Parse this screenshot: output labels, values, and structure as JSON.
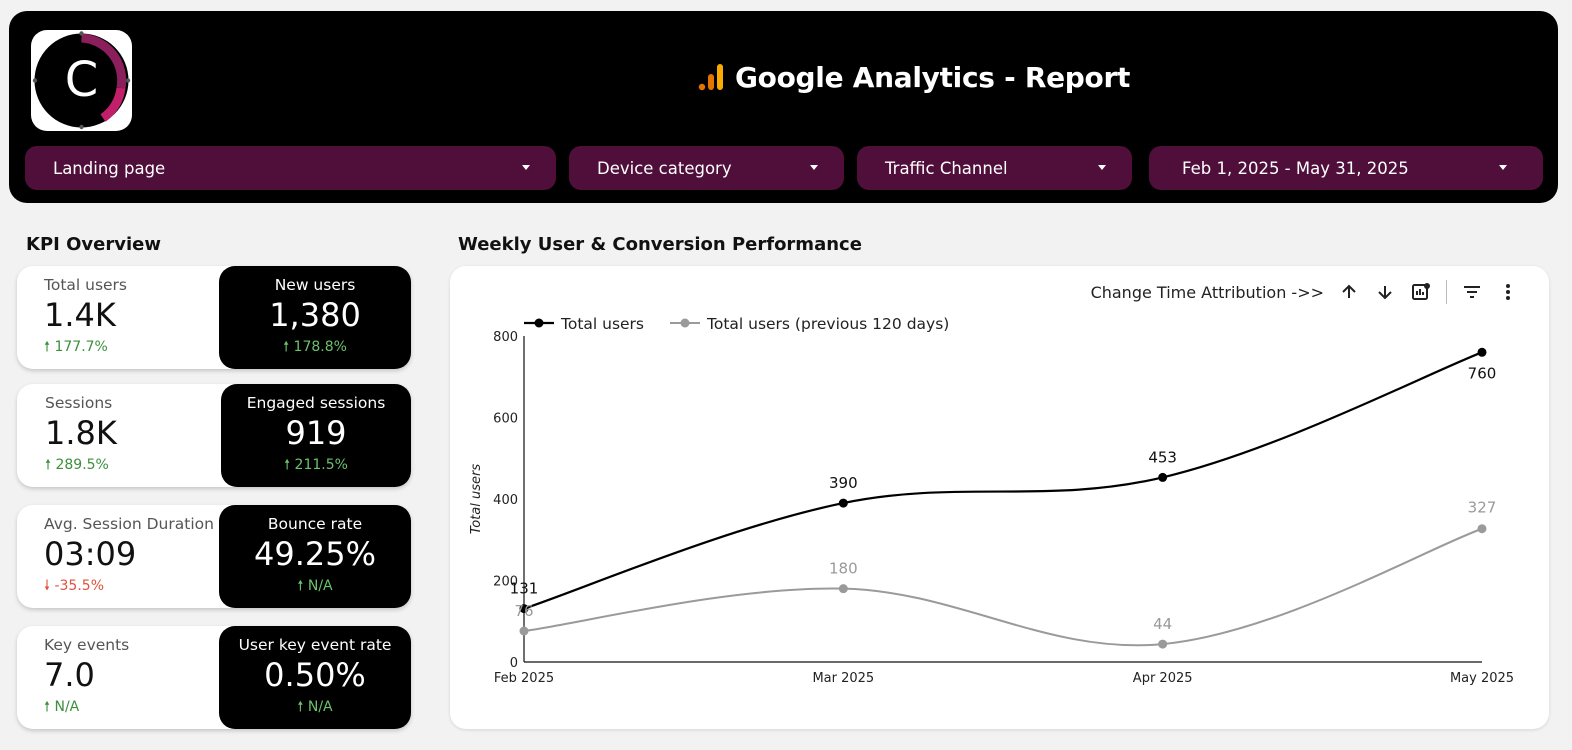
{
  "header": {
    "logo_letter": "C",
    "title": "Google Analytics - Report"
  },
  "filters": [
    {
      "label": "Landing page"
    },
    {
      "label": "Device category"
    },
    {
      "label": "Traffic Channel"
    },
    {
      "label": "Feb 1, 2025 - May 31, 2025"
    }
  ],
  "kpi": {
    "section_title": "KPI Overview",
    "cards": [
      {
        "left_name": "Total users",
        "left_value": "1.4K",
        "left_delta": "177.7%",
        "right_name": "New users",
        "right_value": "1,380",
        "right_delta": "178.8%"
      },
      {
        "left_name": "Sessions",
        "left_value": "1.8K",
        "left_delta": "289.5%",
        "right_name": "Engaged sessions",
        "right_value": "919",
        "right_delta": "211.5%"
      },
      {
        "left_name": "Avg. Session Duration",
        "left_value": "03:09",
        "left_delta": "-35.5%",
        "right_name": "Bounce rate",
        "right_value": "49.25%",
        "right_delta": "N/A"
      },
      {
        "left_name": "Key events",
        "left_value": "7.0",
        "left_delta": "N/A",
        "right_name": "User key event rate",
        "right_value": "0.50%",
        "right_delta": "N/A"
      }
    ]
  },
  "chart_section": {
    "title": "Weekly User & Conversion Performance",
    "toolbar_label": "Change Time Attribution ->>"
  },
  "colors": {
    "header_bg": "#000000",
    "filter_bg": "#4f0f3a",
    "series_current": "#000000",
    "series_previous": "#9a9a9a",
    "positive": "#3c8f3c",
    "negative": "#e0523e",
    "analytics_orange": "#f9ab00"
  },
  "chart_data": {
    "type": "line",
    "categories": [
      "Feb 2025",
      "Mar 2025",
      "Apr 2025",
      "May 2025"
    ],
    "series": [
      {
        "name": "Total users",
        "values": [
          131,
          390,
          453,
          760
        ],
        "color": "#000000"
      },
      {
        "name": "Total users (previous 120 days)",
        "values": [
          76,
          180,
          44,
          327
        ],
        "color": "#9a9a9a"
      }
    ],
    "title": "",
    "xlabel": "",
    "ylabel": "Total users",
    "ylim": [
      0,
      800
    ],
    "yticks": [
      0,
      200,
      400,
      600,
      800
    ],
    "legend": "top-left",
    "grid": false,
    "smooth": true
  }
}
